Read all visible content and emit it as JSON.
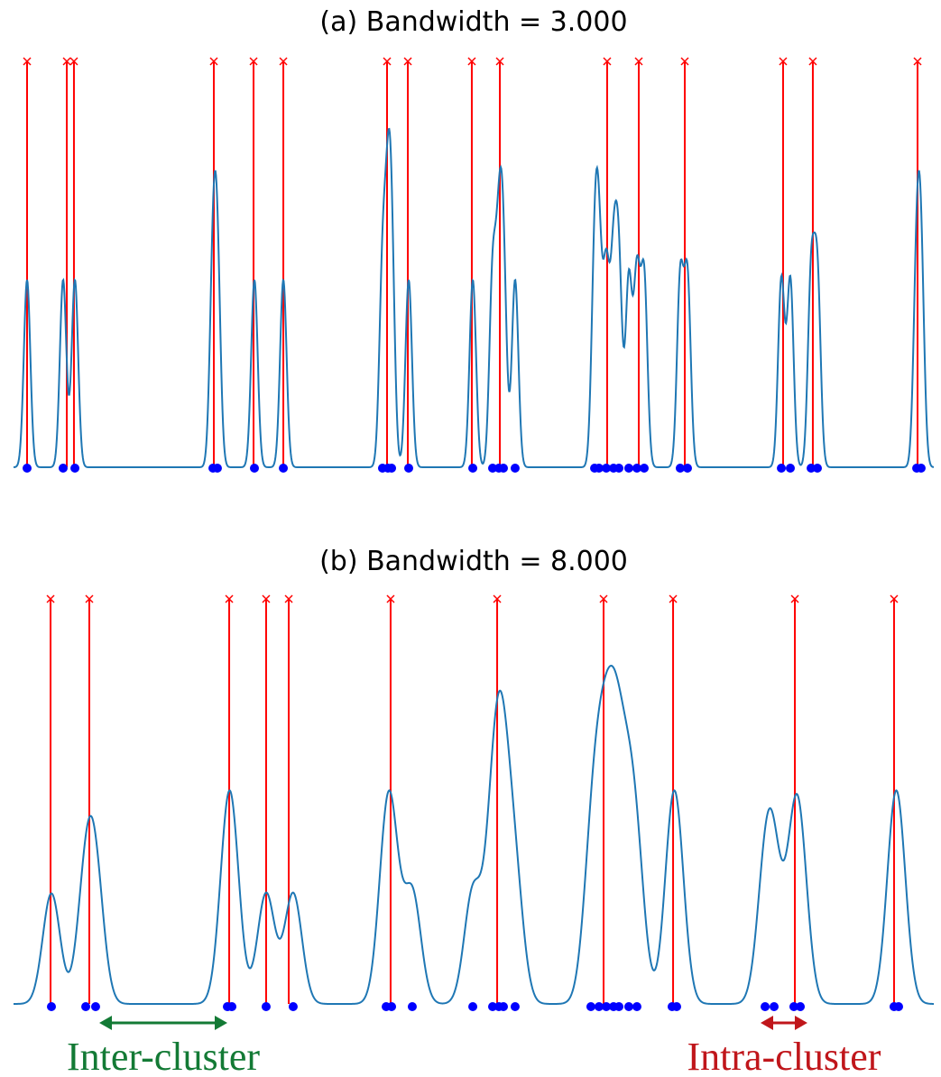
{
  "chart_data": [
    {
      "type": "kde",
      "title": "(a) Bandwidth = 3.000",
      "bandwidth": 3,
      "xlim": [
        0,
        850
      ],
      "points": [
        12.5,
        45.8,
        56.7,
        184.2,
        188.3,
        222.5,
        249.2,
        340.8,
        345.8,
        349.2,
        365,
        424.2,
        442.5,
        448.3,
        452.5,
        463.3,
        536.7,
        540.8,
        547.5,
        554.2,
        559.2,
        568.3,
        575.8,
        582.5,
        615.8,
        622.5,
        709.2,
        717.5,
        736.7,
        742.5,
        834.2,
        838.3
      ],
      "peaks": [
        12.5,
        49.2,
        55.8,
        185,
        221.7,
        249.2,
        345,
        364.2,
        423.3,
        449.2,
        548.3,
        577.5,
        620,
        710.8,
        738.3,
        835
      ],
      "curve_color": "#1f77b4",
      "point_color": "#0000ff",
      "peak_color": "#ff0000"
    },
    {
      "type": "kde",
      "title": "(b) Bandwidth = 8.000",
      "bandwidth": 8,
      "xlim": [
        0,
        850
      ],
      "points": [
        35,
        66.7,
        75.8,
        197.5,
        201.7,
        233.3,
        258.3,
        344.2,
        349.2,
        368.3,
        424.2,
        442.5,
        448.3,
        452.5,
        463.3,
        533.3,
        540.8,
        547.5,
        554.2,
        559.2,
        568.3,
        575.8,
        608.3,
        612.5,
        694.2,
        702.5,
        720.8,
        726.7,
        813.3,
        817.5
      ],
      "peaks": [
        34.2,
        70,
        199.2,
        233.3,
        254.2,
        348.3,
        446.7,
        545,
        609.2,
        721.7,
        813.3
      ],
      "curve_color": "#1f77b4",
      "point_color": "#0000ff",
      "peak_color": "#ff0000",
      "annotations": [
        {
          "text": "Inter-cluster",
          "color": "#137a35",
          "x": [
            79.2,
            197.5
          ]
        },
        {
          "text": "Intra-cluster",
          "color": "#c0161b",
          "x": [
            690,
            733.3
          ]
        }
      ]
    }
  ]
}
